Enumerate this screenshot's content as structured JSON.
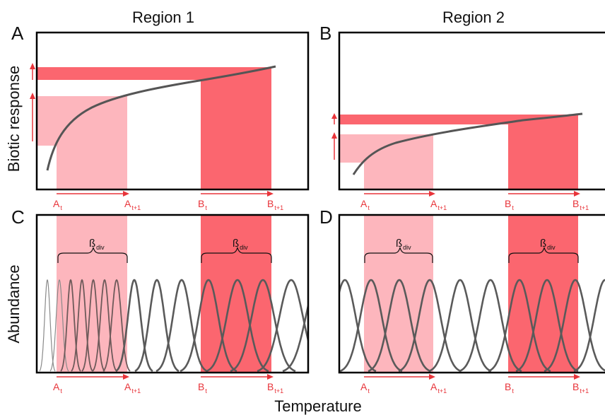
{
  "titles": {
    "region_1": "Region 1",
    "region_2": "Region 2"
  },
  "panels": {
    "a": "A",
    "b": "B",
    "c": "C",
    "d": "D"
  },
  "axes": {
    "top_y_label": "Biotic response",
    "bottom_y_label": "Abundance",
    "x_label": "Temperature"
  },
  "markers": {
    "a_base": "A",
    "a_t": "t",
    "a_t1": "t+1",
    "b_base": "B",
    "b_t": "t",
    "b_t1": "t+1"
  },
  "beta": {
    "symbol": "ß",
    "sub": "div"
  },
  "colors": {
    "light_band": "#fdb6bd",
    "dark_band": "#fb666f",
    "arrow": "#e8343a",
    "curve": "#555555"
  }
}
